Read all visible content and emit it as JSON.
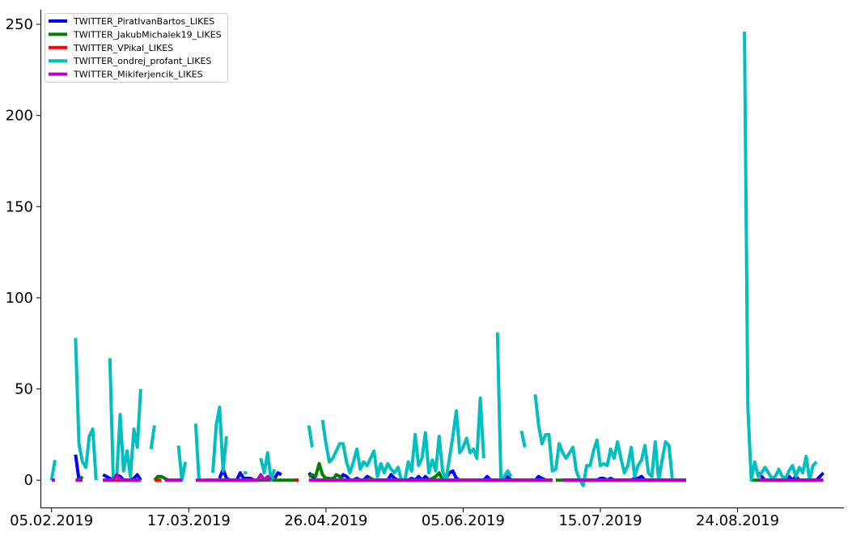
{
  "chart_data": {
    "type": "line",
    "title": "",
    "xlabel": "",
    "ylabel": "",
    "x_start": "2019-02-05",
    "x_end": "2019-09-07",
    "xlim": [
      "2019-02-02",
      "2019-09-24"
    ],
    "ylim": [
      -15,
      258
    ],
    "x_ticks": [
      "05.02.2019",
      "17.03.2019",
      "26.04.2019",
      "05.06.2019",
      "15.07.2019",
      "24.08.2019"
    ],
    "y_ticks": [
      0,
      50,
      100,
      150,
      200,
      250
    ],
    "legend_position": "top-left",
    "grid": false,
    "series": [
      {
        "name": "TWITTER_PiratIvanBartos_LIKES",
        "color": "#0000ff",
        "values": [
          null,
          null,
          null,
          null,
          null,
          null,
          null,
          14,
          0,
          0,
          null,
          null,
          null,
          null,
          null,
          3,
          2,
          1,
          0,
          3,
          2,
          0,
          0,
          0,
          1,
          3,
          0,
          null,
          null,
          null,
          2,
          null,
          null,
          null,
          null,
          null,
          null,
          null,
          null,
          null,
          null,
          null,
          null,
          null,
          null,
          null,
          null,
          null,
          null,
          1,
          6,
          1,
          0,
          0,
          0,
          4,
          1,
          1,
          1,
          0,
          null,
          null,
          null,
          null,
          null,
          1,
          4,
          3,
          null,
          null,
          null,
          null,
          null,
          null,
          null,
          4,
          2,
          0,
          0,
          0,
          1,
          0,
          1,
          0,
          0,
          3,
          2,
          0,
          0,
          1,
          0,
          0,
          2,
          1,
          0,
          0,
          0,
          0,
          0,
          3,
          1,
          0,
          0,
          0,
          0,
          1,
          0,
          2,
          0,
          2,
          0,
          0,
          0,
          0,
          0,
          1,
          4,
          5,
          1,
          0,
          0,
          0,
          0,
          0,
          0,
          0,
          0,
          2,
          0,
          0,
          0,
          0,
          1,
          2,
          0,
          0,
          0,
          0,
          0,
          0,
          0,
          0,
          2,
          1,
          0,
          0,
          0,
          null,
          null,
          0,
          0,
          0,
          0,
          0,
          0,
          0,
          0,
          0,
          0,
          0,
          1,
          1,
          0,
          1,
          0,
          0,
          0,
          0,
          0,
          0,
          1,
          1,
          2,
          0,
          0,
          0,
          0,
          0,
          0,
          0,
          0,
          0,
          0,
          0,
          0,
          0,
          null,
          null,
          null,
          null,
          null,
          null,
          null,
          null,
          null,
          null,
          null,
          null,
          null,
          null,
          null,
          null,
          null,
          null,
          null,
          null,
          4,
          2,
          0,
          0,
          0,
          0,
          0,
          0,
          0,
          2,
          0,
          2,
          0,
          0,
          0,
          0,
          0,
          0,
          2,
          4
        ]
      },
      {
        "name": "TWITTER_JakubMichalek19_LIKES",
        "color": "#008000",
        "values": [
          null,
          null,
          null,
          null,
          null,
          null,
          null,
          0,
          0,
          2,
          null,
          null,
          null,
          null,
          null,
          0,
          0,
          0,
          0,
          0,
          0,
          0,
          0,
          0,
          0,
          0,
          0,
          null,
          null,
          null,
          0,
          2,
          2,
          1,
          0,
          0,
          0,
          0,
          0,
          null,
          null,
          null,
          null,
          null,
          null,
          0,
          0,
          0,
          0,
          0,
          0,
          0,
          0,
          0,
          0,
          0,
          0,
          0,
          0,
          0,
          0,
          0,
          0,
          0,
          0,
          0,
          0,
          0,
          0,
          0,
          0,
          0,
          0,
          null,
          null,
          2,
          3,
          2,
          9,
          3,
          1,
          1,
          0,
          3,
          2,
          0,
          0,
          0,
          0,
          0,
          0,
          0,
          0,
          1,
          0,
          0,
          0,
          0,
          0,
          0,
          0,
          0,
          0,
          0,
          0,
          0,
          0,
          0,
          0,
          0,
          0,
          1,
          2,
          4,
          0,
          0,
          0,
          0,
          0,
          0,
          0,
          0,
          0,
          0,
          0,
          0,
          0,
          0,
          0,
          0,
          0,
          0,
          0,
          0,
          0,
          0,
          0,
          0,
          0,
          0,
          0,
          0,
          0,
          0,
          0,
          null,
          null,
          0,
          0,
          0,
          0,
          0,
          0,
          0,
          0,
          0,
          0,
          0,
          0,
          0,
          0,
          0,
          0,
          0,
          0,
          0,
          0,
          0,
          0,
          0,
          0,
          0,
          0,
          0,
          0,
          0,
          0,
          0,
          0,
          0,
          0,
          0,
          0,
          0,
          null,
          null,
          null,
          null,
          null,
          null,
          null,
          null,
          null,
          null,
          null,
          null,
          null,
          null,
          null,
          null,
          null,
          null,
          null,
          null,
          0,
          0,
          0,
          0,
          0,
          0,
          0,
          0,
          0,
          0,
          0,
          0,
          0,
          0,
          0,
          0,
          0,
          0,
          0,
          0
        ]
      },
      {
        "name": "TWITTER_VPikal_LIKES",
        "color": "#ff0000",
        "values": [
          null,
          null,
          null,
          null,
          null,
          null,
          null,
          null,
          null,
          null,
          null,
          null,
          null,
          null,
          null,
          0,
          0,
          0,
          0,
          0,
          0,
          0,
          0,
          0,
          0,
          0,
          0,
          null,
          null,
          null,
          0,
          0,
          0,
          null,
          null,
          null,
          null,
          null,
          null,
          null,
          null,
          null,
          null,
          null,
          null,
          null,
          null,
          null,
          0,
          0,
          0,
          0,
          0,
          null,
          null,
          null,
          null,
          null,
          null,
          null,
          null,
          null,
          null,
          null,
          null,
          null,
          null,
          null,
          null,
          null,
          null,
          0,
          0,
          null,
          null,
          null,
          0,
          0,
          0,
          0,
          0,
          0,
          0,
          0,
          0,
          0,
          0,
          0,
          0,
          0,
          0,
          0,
          0,
          0,
          0,
          0,
          0,
          0,
          0,
          0,
          0,
          0,
          0,
          0,
          0,
          0,
          0,
          0,
          0,
          0,
          0,
          0,
          0,
          0,
          0,
          0,
          0,
          0,
          0,
          0,
          0,
          0,
          0,
          0,
          0,
          0,
          0,
          0,
          0,
          0,
          0,
          0,
          0,
          0,
          0,
          0,
          0,
          0,
          0,
          0,
          0,
          0,
          0,
          0,
          0,
          0,
          0,
          null,
          null,
          0,
          0,
          0,
          0,
          0,
          0,
          0,
          0,
          0,
          0,
          0,
          0,
          0,
          0,
          0,
          0,
          0,
          0,
          0,
          0,
          0,
          0,
          0,
          0,
          0,
          0,
          0,
          0,
          0,
          0,
          0,
          0,
          0,
          0,
          0,
          0,
          0,
          null,
          null,
          null,
          null,
          null,
          null,
          null,
          null,
          null,
          null,
          null,
          null,
          null,
          null,
          null,
          null,
          null,
          null,
          null,
          null,
          0,
          0,
          0,
          0,
          0,
          0,
          0,
          0,
          0,
          0,
          0,
          0,
          0,
          0,
          0,
          0,
          0,
          0,
          0,
          0
        ]
      },
      {
        "name": "TWITTER_ondrej_profant_LIKES",
        "color": "#00bfbf",
        "values": [
          0,
          11,
          null,
          null,
          null,
          null,
          null,
          78,
          20,
          10,
          7,
          24,
          28,
          0,
          null,
          null,
          null,
          67,
          0,
          2,
          36,
          5,
          16,
          2,
          28,
          18,
          50,
          null,
          null,
          17,
          30,
          null,
          null,
          null,
          null,
          null,
          null,
          19,
          0,
          10,
          null,
          null,
          31,
          0,
          null,
          null,
          null,
          4,
          30,
          40,
          5,
          24,
          null,
          null,
          null,
          null,
          4,
          4,
          null,
          null,
          null,
          12,
          4,
          15,
          0,
          6,
          null,
          null,
          null,
          null,
          null,
          null,
          null,
          null,
          null,
          30,
          18,
          null,
          null,
          33,
          20,
          10,
          12,
          16,
          20,
          20,
          10,
          4,
          10,
          17,
          6,
          10,
          8,
          12,
          16,
          2,
          9,
          4,
          9,
          6,
          4,
          7,
          0,
          0,
          10,
          5,
          25,
          8,
          12,
          26,
          4,
          11,
          5,
          24,
          5,
          0,
          12,
          24,
          38,
          15,
          18,
          23,
          15,
          17,
          12,
          45,
          12,
          null,
          null,
          null,
          81,
          0,
          2,
          5,
          2,
          null,
          null,
          27,
          18,
          null,
          null,
          47,
          30,
          20,
          25,
          25,
          5,
          6,
          20,
          15,
          12,
          15,
          18,
          5,
          0,
          -3,
          8,
          8,
          16,
          22,
          8,
          9,
          8,
          17,
          12,
          21,
          12,
          4,
          8,
          18,
          2,
          8,
          11,
          19,
          4,
          2,
          21,
          0,
          11,
          21,
          19,
          0,
          null,
          null,
          null,
          null,
          null,
          null,
          null,
          null,
          null,
          null,
          null,
          null,
          null,
          null,
          null,
          null,
          null,
          null,
          null,
          null,
          246,
          40,
          0,
          10,
          2,
          4,
          7,
          4,
          1,
          2,
          6,
          2,
          1,
          5,
          8,
          2,
          7,
          4,
          13,
          0,
          8,
          10
        ]
      },
      {
        "name": "TWITTER_Mikiferjencik_LIKES",
        "color": "#bf00bf",
        "values": [
          0,
          0,
          null,
          null,
          null,
          null,
          null,
          0,
          0,
          0,
          null,
          null,
          null,
          null,
          null,
          0,
          0,
          0,
          0,
          3,
          0,
          0,
          0,
          0,
          0,
          0,
          0,
          null,
          null,
          null,
          null,
          null,
          null,
          0,
          0,
          0,
          0,
          0,
          0,
          null,
          null,
          null,
          0,
          0,
          0,
          0,
          0,
          0,
          0,
          0,
          0,
          0,
          0,
          0,
          0,
          0,
          0,
          0,
          0,
          0,
          0,
          3,
          0,
          2,
          0,
          null,
          null,
          null,
          null,
          null,
          null,
          null,
          null,
          null,
          null,
          0,
          0,
          0,
          0,
          0,
          0,
          0,
          0,
          0,
          0,
          0,
          0,
          0,
          0,
          0,
          0,
          0,
          0,
          0,
          0,
          0,
          0,
          0,
          0,
          0,
          0,
          0,
          0,
          0,
          0,
          0,
          0,
          0,
          0,
          0,
          0,
          0,
          0,
          0,
          0,
          0,
          0,
          0,
          0,
          0,
          0,
          0,
          0,
          0,
          0,
          0,
          0,
          0,
          0,
          0,
          0,
          0,
          0,
          0,
          0,
          0,
          0,
          0,
          0,
          0,
          0,
          0,
          0,
          0,
          0,
          0,
          0,
          null,
          null,
          0,
          0,
          0,
          0,
          0,
          0,
          0,
          0,
          0,
          0,
          0,
          0,
          0,
          0,
          0,
          0,
          0,
          0,
          0,
          0,
          0,
          0,
          0,
          0,
          0,
          0,
          0,
          0,
          0,
          0,
          0,
          0,
          0,
          0,
          0,
          0,
          0,
          null,
          null,
          null,
          null,
          null,
          null,
          null,
          null,
          null,
          null,
          null,
          null,
          null,
          null,
          null,
          null,
          null,
          null,
          null,
          null,
          0,
          0,
          0,
          0,
          0,
          0,
          0,
          0,
          0,
          0,
          0,
          0,
          0,
          0,
          0,
          0,
          0,
          0,
          0,
          0
        ]
      }
    ]
  }
}
